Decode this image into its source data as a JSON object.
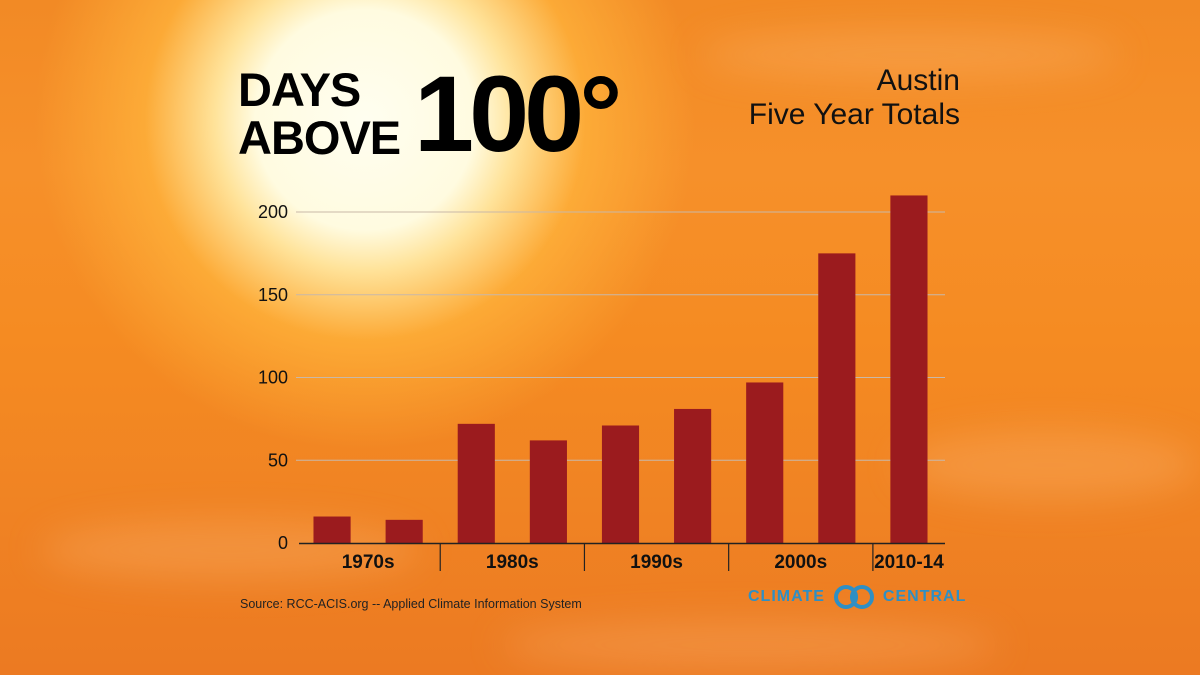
{
  "title": {
    "line1": "DAYS",
    "line2": "ABOVE",
    "number": "100°"
  },
  "subtitle": {
    "line1": "Austin",
    "line2": "Five Year Totals"
  },
  "source": "Source: RCC-ACIS.org -- Applied Climate Information System",
  "logo": {
    "left_text": "CLIMATE",
    "right_text": "CENTRAL",
    "color": "#2f8fc4"
  },
  "colors": {
    "bar": "#9b1b1e",
    "grid": "#c9b8a8",
    "axis": "#222222"
  },
  "chart_data": {
    "type": "bar",
    "title": "DAYS ABOVE 100°",
    "subtitle": "Austin Five Year Totals",
    "values": [
      16,
      14,
      72,
      62,
      71,
      81,
      97,
      175,
      210
    ],
    "groups": [
      {
        "label": "1970s",
        "bars": 2
      },
      {
        "label": "1980s",
        "bars": 2
      },
      {
        "label": "1990s",
        "bars": 2
      },
      {
        "label": "2000s",
        "bars": 2
      },
      {
        "label": "2010-14",
        "bars": 1
      }
    ],
    "ylim": [
      0,
      200
    ],
    "yticks": [
      0,
      50,
      100,
      150,
      200
    ],
    "grid": true,
    "legend": false
  }
}
